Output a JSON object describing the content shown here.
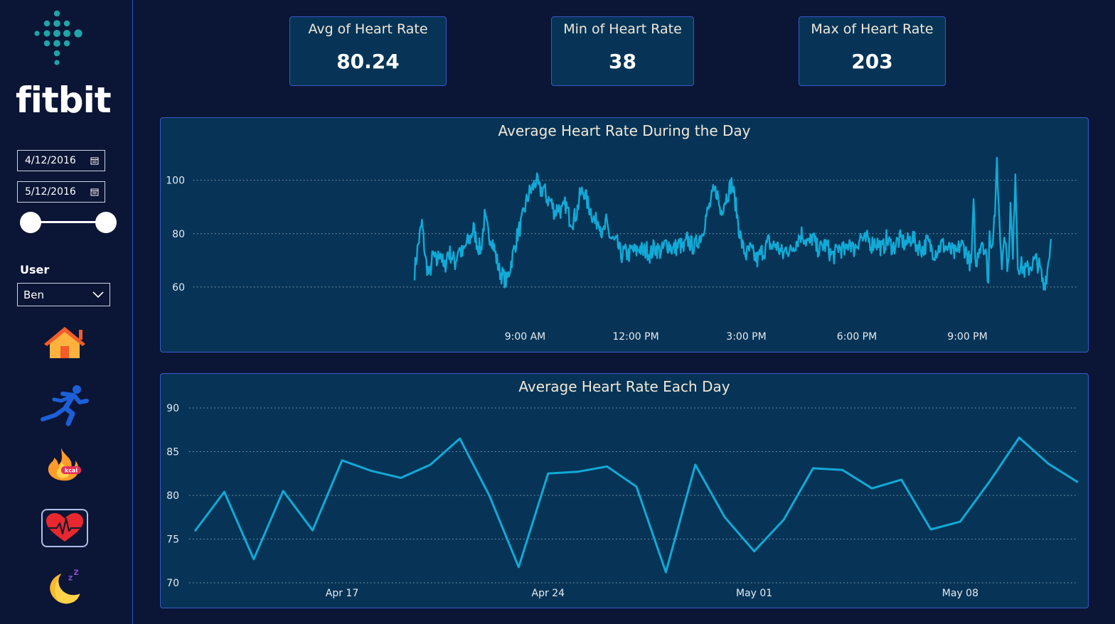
{
  "brand": {
    "name": "fitbit",
    "accent": "#1fa5a8"
  },
  "filters": {
    "start_date": "4/12/2016",
    "end_date": "5/12/2016",
    "user_label": "User",
    "user_value": "Ben"
  },
  "nav": [
    "home-icon",
    "running-icon",
    "calories-icon",
    "heart-rate-icon",
    "sleep-icon"
  ],
  "cards": [
    {
      "title": "Avg of Heart Rate",
      "value": "80.24"
    },
    {
      "title": "Min of Heart Rate",
      "value": "38"
    },
    {
      "title": "Max of Heart Rate",
      "value": "203"
    }
  ],
  "colors": {
    "background": "#0b1535",
    "panel": "#073456",
    "border": "#3a58c8",
    "line": "#12a9d6",
    "title": "#f1e8d9"
  },
  "chart_data": [
    {
      "type": "line",
      "title": "Average Heart Rate During the Day",
      "x_unit": "minutes since midnight",
      "xlim": [
        0,
        1440
      ],
      "ylim": [
        52,
        110
      ],
      "y_ticks": [
        60,
        80,
        100
      ],
      "x_ticks": [
        {
          "label": "9:00 AM",
          "value": 540
        },
        {
          "label": "12:00 PM",
          "value": 720
        },
        {
          "label": "3:00 PM",
          "value": 900
        },
        {
          "label": "6:00 PM",
          "value": 1080
        },
        {
          "label": "9:00 PM",
          "value": 1260
        }
      ],
      "grid": true,
      "anchors": [
        [
          360,
          66
        ],
        [
          366,
          76
        ],
        [
          372,
          84
        ],
        [
          378,
          70
        ],
        [
          384,
          64
        ],
        [
          390,
          72
        ],
        [
          396,
          69
        ],
        [
          402,
          74
        ],
        [
          408,
          66
        ],
        [
          414,
          73
        ],
        [
          420,
          72
        ],
        [
          426,
          69
        ],
        [
          432,
          75
        ],
        [
          438,
          72
        ],
        [
          444,
          76
        ],
        [
          450,
          78
        ],
        [
          456,
          82
        ],
        [
          462,
          76
        ],
        [
          468,
          74
        ],
        [
          474,
          86
        ],
        [
          480,
          80
        ],
        [
          486,
          78
        ],
        [
          492,
          72
        ],
        [
          498,
          66
        ],
        [
          504,
          64
        ],
        [
          510,
          62
        ],
        [
          516,
          68
        ],
        [
          522,
          74
        ],
        [
          528,
          80
        ],
        [
          534,
          84
        ],
        [
          540,
          90
        ],
        [
          546,
          95
        ],
        [
          552,
          97
        ],
        [
          558,
          100
        ],
        [
          564,
          96
        ],
        [
          570,
          97
        ],
        [
          576,
          93
        ],
        [
          582,
          92
        ],
        [
          588,
          88
        ],
        [
          594,
          90
        ],
        [
          600,
          88
        ],
        [
          606,
          91
        ],
        [
          612,
          86
        ],
        [
          618,
          85
        ],
        [
          624,
          88
        ],
        [
          630,
          95
        ],
        [
          636,
          96
        ],
        [
          642,
          91
        ],
        [
          648,
          88
        ],
        [
          654,
          84
        ],
        [
          660,
          86
        ],
        [
          666,
          79
        ],
        [
          672,
          84
        ],
        [
          678,
          79
        ],
        [
          684,
          77
        ],
        [
          690,
          76
        ],
        [
          696,
          72
        ],
        [
          702,
          73
        ],
        [
          708,
          72
        ],
        [
          714,
          74
        ],
        [
          720,
          73
        ],
        [
          726,
          75
        ],
        [
          732,
          73
        ],
        [
          738,
          74
        ],
        [
          744,
          72
        ],
        [
          750,
          75
        ],
        [
          756,
          74
        ],
        [
          762,
          73
        ],
        [
          768,
          76
        ],
        [
          774,
          76
        ],
        [
          780,
          74
        ],
        [
          786,
          75
        ],
        [
          792,
          76
        ],
        [
          798,
          74
        ],
        [
          804,
          78
        ],
        [
          810,
          76
        ],
        [
          816,
          75
        ],
        [
          822,
          78
        ],
        [
          828,
          80
        ],
        [
          834,
          86
        ],
        [
          840,
          90
        ],
        [
          846,
          95
        ],
        [
          852,
          96
        ],
        [
          858,
          88
        ],
        [
          864,
          92
        ],
        [
          870,
          95
        ],
        [
          876,
          99
        ],
        [
          882,
          92
        ],
        [
          888,
          82
        ],
        [
          894,
          75
        ],
        [
          900,
          72
        ],
        [
          906,
          74
        ],
        [
          912,
          72
        ],
        [
          918,
          70
        ],
        [
          924,
          73
        ],
        [
          930,
          74
        ],
        [
          936,
          77
        ],
        [
          942,
          75
        ],
        [
          948,
          76
        ],
        [
          954,
          74
        ],
        [
          960,
          72
        ],
        [
          966,
          75
        ],
        [
          972,
          73
        ],
        [
          978,
          76
        ],
        [
          984,
          78
        ],
        [
          990,
          80
        ],
        [
          996,
          78
        ],
        [
          1002,
          76
        ],
        [
          1008,
          79
        ],
        [
          1014,
          75
        ],
        [
          1020,
          74
        ],
        [
          1026,
          76
        ],
        [
          1032,
          75
        ],
        [
          1038,
          72
        ],
        [
          1044,
          72
        ],
        [
          1050,
          75
        ],
        [
          1056,
          74
        ],
        [
          1062,
          73
        ],
        [
          1068,
          78
        ],
        [
          1074,
          74
        ],
        [
          1080,
          76
        ],
        [
          1086,
          79
        ],
        [
          1092,
          77
        ],
        [
          1098,
          78
        ],
        [
          1104,
          76
        ],
        [
          1110,
          77
        ],
        [
          1116,
          76
        ],
        [
          1122,
          74
        ],
        [
          1128,
          78
        ],
        [
          1134,
          76
        ],
        [
          1140,
          75
        ],
        [
          1146,
          77
        ],
        [
          1152,
          78
        ],
        [
          1158,
          76
        ],
        [
          1164,
          77
        ],
        [
          1170,
          79
        ],
        [
          1176,
          76
        ],
        [
          1182,
          75
        ],
        [
          1188,
          74
        ],
        [
          1194,
          77
        ],
        [
          1200,
          75
        ],
        [
          1206,
          73
        ],
        [
          1212,
          74
        ],
        [
          1218,
          76
        ],
        [
          1224,
          75
        ],
        [
          1230,
          74
        ],
        [
          1236,
          73
        ],
        [
          1242,
          72
        ],
        [
          1248,
          76
        ],
        [
          1254,
          75
        ],
        [
          1260,
          72
        ],
        [
          1266,
          68
        ],
        [
          1270,
          90
        ],
        [
          1274,
          66
        ],
        [
          1278,
          74
        ],
        [
          1284,
          78
        ],
        [
          1290,
          72
        ],
        [
          1294,
          62
        ],
        [
          1296,
          80
        ],
        [
          1300,
          76
        ],
        [
          1306,
          92
        ],
        [
          1308,
          108
        ],
        [
          1312,
          84
        ],
        [
          1316,
          68
        ],
        [
          1320,
          82
        ],
        [
          1326,
          66
        ],
        [
          1330,
          90
        ],
        [
          1334,
          70
        ],
        [
          1338,
          104
        ],
        [
          1342,
          68
        ],
        [
          1348,
          68
        ],
        [
          1354,
          66
        ],
        [
          1360,
          67
        ],
        [
          1366,
          69
        ],
        [
          1372,
          70
        ],
        [
          1378,
          67
        ],
        [
          1384,
          60
        ],
        [
          1390,
          66
        ],
        [
          1396,
          78
        ]
      ]
    },
    {
      "type": "line",
      "title": "Average Heart Rate Each Day",
      "x": [
        "2016-04-12",
        "2016-04-13",
        "2016-04-14",
        "2016-04-15",
        "2016-04-16",
        "2016-04-17",
        "2016-04-18",
        "2016-04-19",
        "2016-04-20",
        "2016-04-21",
        "2016-04-22",
        "2016-04-23",
        "2016-04-24",
        "2016-04-25",
        "2016-04-26",
        "2016-04-27",
        "2016-04-28",
        "2016-04-29",
        "2016-04-30",
        "2016-05-01",
        "2016-05-02",
        "2016-05-03",
        "2016-05-04",
        "2016-05-05",
        "2016-05-06",
        "2016-05-07",
        "2016-05-08",
        "2016-05-09",
        "2016-05-10",
        "2016-05-11",
        "2016-05-12"
      ],
      "values": [
        75.9,
        80.4,
        72.7,
        80.5,
        76.0,
        84.0,
        82.8,
        82.0,
        83.5,
        86.5,
        80.0,
        71.8,
        82.5,
        82.7,
        83.3,
        81.0,
        71.2,
        83.5,
        77.5,
        73.6,
        77.2,
        83.1,
        82.9,
        80.8,
        81.8,
        76.1,
        77.0,
        81.6,
        86.6,
        83.6,
        81.5
      ],
      "ylim": [
        70,
        90
      ],
      "y_ticks": [
        70,
        75,
        80,
        85,
        90
      ],
      "x_ticks": [
        {
          "label": "Apr 17",
          "value": "2016-04-17"
        },
        {
          "label": "Apr 24",
          "value": "2016-04-24"
        },
        {
          "label": "May 01",
          "value": "2016-05-01"
        },
        {
          "label": "May 08",
          "value": "2016-05-08"
        }
      ],
      "grid": true
    }
  ]
}
